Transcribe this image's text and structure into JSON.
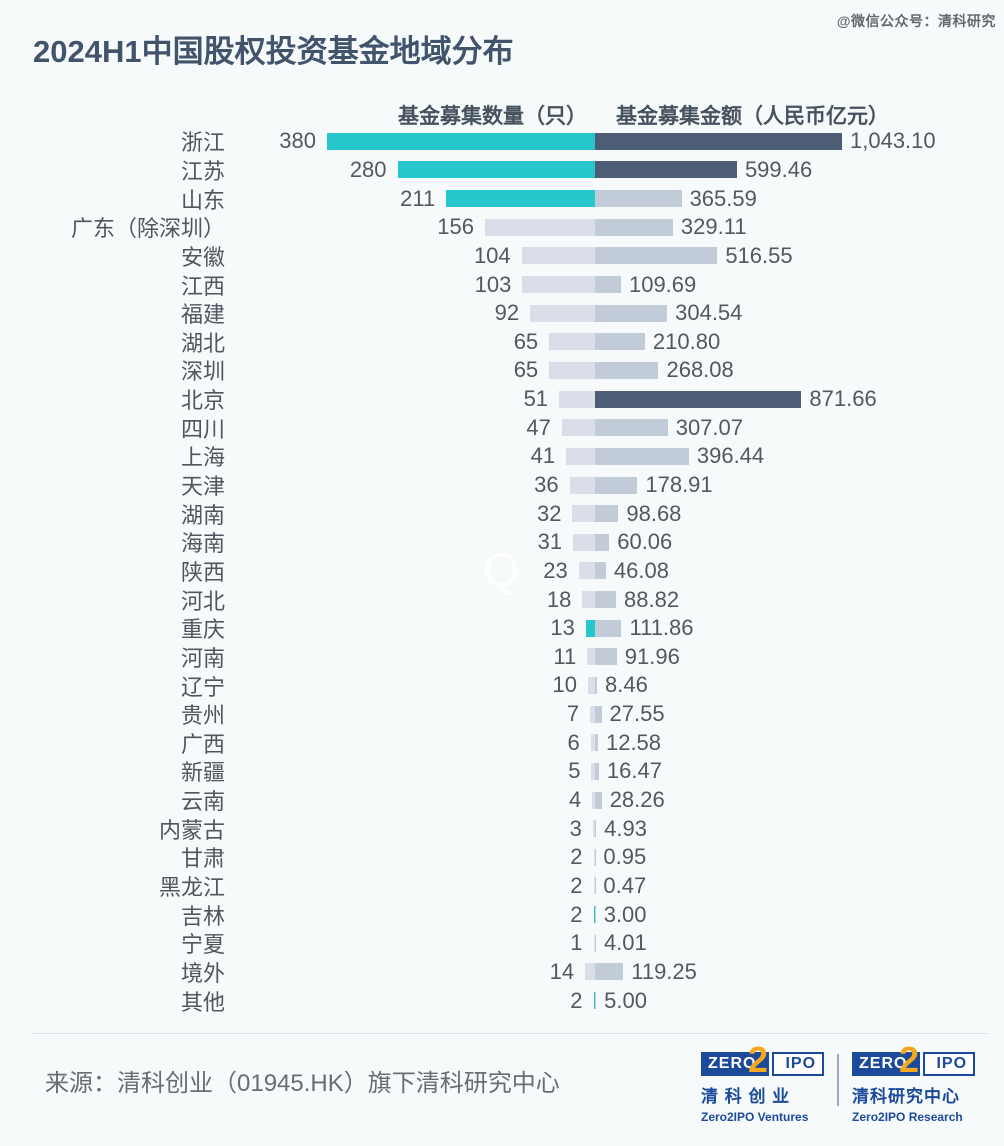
{
  "watermark_top": "@微信公众号：清科研究",
  "watermark_q": "Q",
  "legend": {
    "count": "基金募集数量（只）",
    "amount": "基金募集金额（人民币亿元）"
  },
  "colors": {
    "teal": "#27C6CD",
    "navy": "#4D5D76",
    "bar_light": "#D9DEE8",
    "bar_mid": "#C2CBD8",
    "title": "#42536C",
    "logo_blue": "#1B4A9B",
    "logo_yellow": "#F3A81F",
    "background": "#F7FAFA"
  },
  "chart_data": {
    "type": "bar",
    "orientation": "horizontal-diverging",
    "title": "2024H1中国股权投资基金地域分布",
    "legend_position": "top",
    "grid": false,
    "count_axis_max": 380,
    "amount_axis_max": 1043.1,
    "categories": [
      "浙江",
      "江苏",
      "山东",
      "广东（除深圳）",
      "安徽",
      "江西",
      "福建",
      "湖北",
      "深圳",
      "北京",
      "四川",
      "上海",
      "天津",
      "湖南",
      "海南",
      "陕西",
      "河北",
      "重庆",
      "河南",
      "辽宁",
      "贵州",
      "广西",
      "新疆",
      "云南",
      "内蒙古",
      "甘肃",
      "黑龙江",
      "吉林",
      "宁夏",
      "境外",
      "其他"
    ],
    "series": [
      {
        "name": "基金募集数量（只）",
        "values": [
          380,
          280,
          211,
          156,
          104,
          103,
          92,
          65,
          65,
          51,
          47,
          41,
          36,
          32,
          31,
          23,
          18,
          13,
          11,
          10,
          7,
          6,
          5,
          4,
          3,
          2,
          2,
          2,
          1,
          14,
          2
        ]
      },
      {
        "name": "基金募集金额（人民币亿元）",
        "values": [
          1043.1,
          599.46,
          365.59,
          329.11,
          516.55,
          109.69,
          304.54,
          210.8,
          268.08,
          871.66,
          307.07,
          396.44,
          178.91,
          98.68,
          60.06,
          46.08,
          88.82,
          111.86,
          91.96,
          8.46,
          27.55,
          12.58,
          16.47,
          28.26,
          4.93,
          0.95,
          0.47,
          3.0,
          4.01,
          119.25,
          5.0
        ]
      }
    ],
    "amount_labels": [
      "1,043.10",
      "599.46",
      "365.59",
      "329.11",
      "516.55",
      "109.69",
      "304.54",
      "210.80",
      "268.08",
      "871.66",
      "307.07",
      "396.44",
      "178.91",
      "98.68",
      "60.06",
      "46.08",
      "88.82",
      "111.86",
      "91.96",
      "8.46",
      "27.55",
      "12.58",
      "16.47",
      "28.26",
      "4.93",
      "0.95",
      "0.47",
      "3.00",
      "4.01",
      "119.25",
      "5.00"
    ],
    "count_highlight_indices": [
      0,
      1,
      2,
      17,
      27,
      30
    ],
    "amount_highlight_indices": [
      0,
      1,
      9
    ]
  },
  "footer": {
    "source": "来源：清科创业（01945.HK）旗下清科研究中心",
    "logos": [
      {
        "zero": "ZERO",
        "two": "2",
        "ipo": "IPO",
        "cn": "清 科 创 业",
        "en": "Zero2IPO Ventures"
      },
      {
        "zero": "ZERO",
        "two": "2",
        "ipo": "IPO",
        "cn": "清科研究中心",
        "en": "Zero2IPO Research"
      }
    ]
  }
}
